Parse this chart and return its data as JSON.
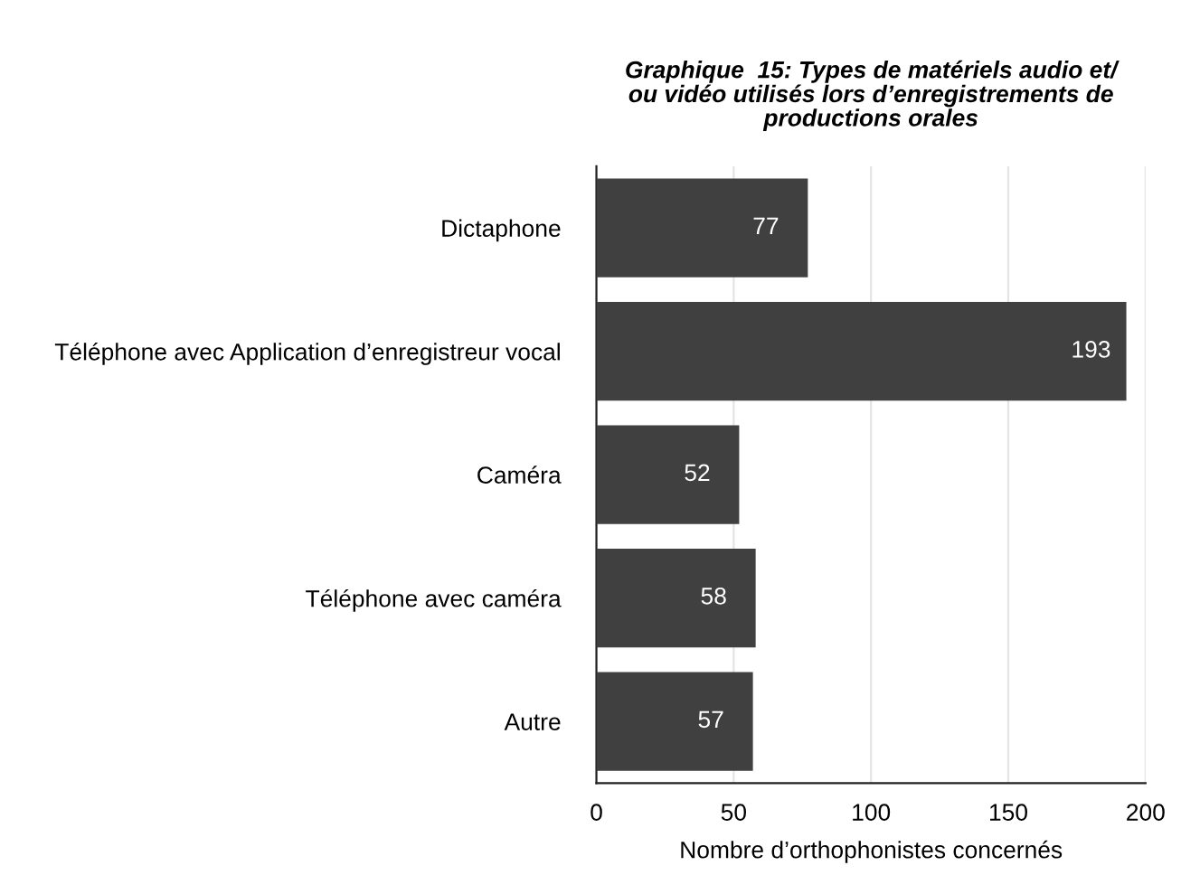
{
  "chart_data": {
    "type": "bar",
    "orientation": "horizontal",
    "title": "Graphique  15: Types de matériels audio et/\nou vidéo utilisés lors d’enregistrements de\nproductions orales",
    "xlabel": "Nombre d’orthophonistes concernés",
    "categories": [
      "Dictaphone",
      "Téléphone avec Application d’enregistreur vocal",
      "Caméra",
      "Téléphone avec caméra",
      "Autre"
    ],
    "values": [
      77,
      193,
      52,
      58,
      57
    ],
    "color": "#404040",
    "data_labels": true,
    "xlim": [
      0,
      200
    ],
    "xticks": [
      0,
      50,
      100,
      150,
      200
    ],
    "grid": "x",
    "legend": false
  }
}
